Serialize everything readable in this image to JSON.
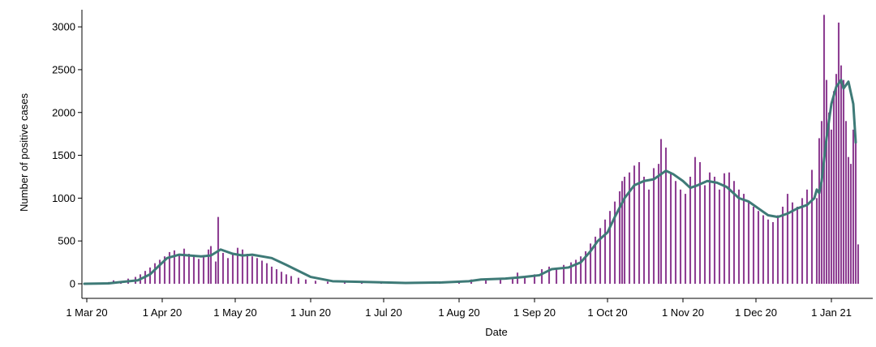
{
  "chart_data": {
    "type": "bar",
    "title": "",
    "xlabel": "Date",
    "ylabel": "Number of positive cases",
    "ylim": [
      0,
      3200
    ],
    "xlim": [
      "2020-02-28",
      "2021-01-18"
    ],
    "y_ticks": [
      0,
      500,
      1000,
      1500,
      2000,
      2500,
      3000
    ],
    "x_ticks": [
      {
        "date": "2020-03-01",
        "label": "1 Mar 20"
      },
      {
        "date": "2020-04-01",
        "label": "1 Apr 20"
      },
      {
        "date": "2020-05-01",
        "label": "1 May 20"
      },
      {
        "date": "2020-06-01",
        "label": "1 Jun 20"
      },
      {
        "date": "2020-07-01",
        "label": "1 Jul 20"
      },
      {
        "date": "2020-08-01",
        "label": "1 Aug 20"
      },
      {
        "date": "2020-09-01",
        "label": "1 Sep 20"
      },
      {
        "date": "2020-10-01",
        "label": "1 Oct 20"
      },
      {
        "date": "2020-11-01",
        "label": "1 Nov 20"
      },
      {
        "date": "2020-12-01",
        "label": "1 Dec 20"
      },
      {
        "date": "2021-01-01",
        "label": "1 Jan 21"
      }
    ],
    "grid": false,
    "legend": "none",
    "colors": {
      "bars": "#8e3f92",
      "line": "#3e7a77",
      "axis": "#000000"
    },
    "series": [
      {
        "type": "bar",
        "points": [
          [
            "2020-02-29",
            2
          ],
          [
            "2020-03-05",
            8
          ],
          [
            "2020-03-10",
            20
          ],
          [
            "2020-03-12",
            40
          ],
          [
            "2020-03-15",
            30
          ],
          [
            "2020-03-18",
            60
          ],
          [
            "2020-03-21",
            80
          ],
          [
            "2020-03-23",
            110
          ],
          [
            "2020-03-25",
            150
          ],
          [
            "2020-03-27",
            190
          ],
          [
            "2020-03-29",
            240
          ],
          [
            "2020-03-31",
            280
          ],
          [
            "2020-04-02",
            320
          ],
          [
            "2020-04-04",
            370
          ],
          [
            "2020-04-06",
            390
          ],
          [
            "2020-04-08",
            330
          ],
          [
            "2020-04-10",
            410
          ],
          [
            "2020-04-12",
            350
          ],
          [
            "2020-04-14",
            320
          ],
          [
            "2020-04-16",
            290
          ],
          [
            "2020-04-18",
            330
          ],
          [
            "2020-04-20",
            400
          ],
          [
            "2020-04-21",
            440
          ],
          [
            "2020-04-23",
            260
          ],
          [
            "2020-04-24",
            780
          ],
          [
            "2020-04-26",
            360
          ],
          [
            "2020-04-28",
            300
          ],
          [
            "2020-04-30",
            350
          ],
          [
            "2020-05-02",
            420
          ],
          [
            "2020-05-04",
            400
          ],
          [
            "2020-05-06",
            350
          ],
          [
            "2020-05-08",
            320
          ],
          [
            "2020-05-10",
            300
          ],
          [
            "2020-05-12",
            270
          ],
          [
            "2020-05-14",
            240
          ],
          [
            "2020-05-16",
            200
          ],
          [
            "2020-05-18",
            170
          ],
          [
            "2020-05-20",
            140
          ],
          [
            "2020-05-22",
            110
          ],
          [
            "2020-05-24",
            90
          ],
          [
            "2020-05-27",
            70
          ],
          [
            "2020-05-30",
            50
          ],
          [
            "2020-06-03",
            35
          ],
          [
            "2020-06-08",
            25
          ],
          [
            "2020-06-15",
            20
          ],
          [
            "2020-06-22",
            15
          ],
          [
            "2020-06-30",
            10
          ],
          [
            "2020-07-08",
            10
          ],
          [
            "2020-07-16",
            12
          ],
          [
            "2020-07-24",
            15
          ],
          [
            "2020-08-01",
            25
          ],
          [
            "2020-08-06",
            50
          ],
          [
            "2020-08-12",
            60
          ],
          [
            "2020-08-18",
            55
          ],
          [
            "2020-08-23",
            80
          ],
          [
            "2020-08-25",
            130
          ],
          [
            "2020-08-28",
            90
          ],
          [
            "2020-09-01",
            110
          ],
          [
            "2020-09-04",
            170
          ],
          [
            "2020-09-07",
            200
          ],
          [
            "2020-09-10",
            180
          ],
          [
            "2020-09-13",
            220
          ],
          [
            "2020-09-16",
            250
          ],
          [
            "2020-09-18",
            280
          ],
          [
            "2020-09-20",
            320
          ],
          [
            "2020-09-22",
            380
          ],
          [
            "2020-09-24",
            470
          ],
          [
            "2020-09-26",
            550
          ],
          [
            "2020-09-28",
            650
          ],
          [
            "2020-09-30",
            750
          ],
          [
            "2020-10-02",
            850
          ],
          [
            "2020-10-04",
            960
          ],
          [
            "2020-10-06",
            1080
          ],
          [
            "2020-10-07",
            1200
          ],
          [
            "2020-10-08",
            1250
          ],
          [
            "2020-10-10",
            1300
          ],
          [
            "2020-10-12",
            1380
          ],
          [
            "2020-10-14",
            1420
          ],
          [
            "2020-10-16",
            1250
          ],
          [
            "2020-10-18",
            1100
          ],
          [
            "2020-10-20",
            1350
          ],
          [
            "2020-10-22",
            1400
          ],
          [
            "2020-10-23",
            1690
          ],
          [
            "2020-10-25",
            1590
          ],
          [
            "2020-10-27",
            1300
          ],
          [
            "2020-10-29",
            1200
          ],
          [
            "2020-10-31",
            1100
          ],
          [
            "2020-11-02",
            1050
          ],
          [
            "2020-11-04",
            1250
          ],
          [
            "2020-11-06",
            1480
          ],
          [
            "2020-11-08",
            1420
          ],
          [
            "2020-11-10",
            1150
          ],
          [
            "2020-11-12",
            1300
          ],
          [
            "2020-11-14",
            1250
          ],
          [
            "2020-11-16",
            1100
          ],
          [
            "2020-11-18",
            1290
          ],
          [
            "2020-11-20",
            1300
          ],
          [
            "2020-11-22",
            1200
          ],
          [
            "2020-11-24",
            1100
          ],
          [
            "2020-11-26",
            1050
          ],
          [
            "2020-11-28",
            950
          ],
          [
            "2020-11-30",
            900
          ],
          [
            "2020-12-02",
            850
          ],
          [
            "2020-12-04",
            800
          ],
          [
            "2020-12-06",
            750
          ],
          [
            "2020-12-08",
            720
          ],
          [
            "2020-12-10",
            800
          ],
          [
            "2020-12-12",
            900
          ],
          [
            "2020-12-14",
            1050
          ],
          [
            "2020-12-16",
            950
          ],
          [
            "2020-12-18",
            900
          ],
          [
            "2020-12-20",
            1000
          ],
          [
            "2020-12-22",
            1100
          ],
          [
            "2020-12-24",
            1330
          ],
          [
            "2020-12-26",
            1000
          ],
          [
            "2020-12-27",
            1700
          ],
          [
            "2020-12-28",
            1900
          ],
          [
            "2020-12-29",
            3140
          ],
          [
            "2020-12-30",
            2380
          ],
          [
            "2020-12-31",
            2000
          ],
          [
            "2021-01-01",
            1800
          ],
          [
            "2021-01-02",
            2250
          ],
          [
            "2021-01-03",
            2450
          ],
          [
            "2021-01-04",
            3050
          ],
          [
            "2021-01-05",
            2550
          ],
          [
            "2021-01-06",
            2380
          ],
          [
            "2021-01-07",
            1900
          ],
          [
            "2021-01-08",
            1480
          ],
          [
            "2021-01-09",
            1400
          ],
          [
            "2021-01-10",
            1800
          ],
          [
            "2021-01-11",
            1650
          ],
          [
            "2021-01-12",
            460
          ]
        ]
      },
      {
        "type": "line",
        "points": [
          [
            "2020-02-29",
            0
          ],
          [
            "2020-03-10",
            5
          ],
          [
            "2020-03-15",
            20
          ],
          [
            "2020-03-22",
            40
          ],
          [
            "2020-03-27",
            110
          ],
          [
            "2020-04-03",
            300
          ],
          [
            "2020-04-08",
            340
          ],
          [
            "2020-04-17",
            320
          ],
          [
            "2020-04-21",
            330
          ],
          [
            "2020-04-25",
            400
          ],
          [
            "2020-04-30",
            350
          ],
          [
            "2020-05-04",
            330
          ],
          [
            "2020-05-08",
            340
          ],
          [
            "2020-05-16",
            300
          ],
          [
            "2020-05-22",
            220
          ],
          [
            "2020-06-01",
            80
          ],
          [
            "2020-06-10",
            30
          ],
          [
            "2020-06-25",
            20
          ],
          [
            "2020-07-10",
            10
          ],
          [
            "2020-07-25",
            15
          ],
          [
            "2020-08-05",
            30
          ],
          [
            "2020-08-10",
            50
          ],
          [
            "2020-08-20",
            60
          ],
          [
            "2020-08-28",
            80
          ],
          [
            "2020-09-03",
            100
          ],
          [
            "2020-09-08",
            170
          ],
          [
            "2020-09-15",
            190
          ],
          [
            "2020-09-20",
            250
          ],
          [
            "2020-09-24",
            380
          ],
          [
            "2020-09-27",
            500
          ],
          [
            "2020-10-01",
            600
          ],
          [
            "2020-10-04",
            780
          ],
          [
            "2020-10-08",
            1000
          ],
          [
            "2020-10-12",
            1150
          ],
          [
            "2020-10-16",
            1200
          ],
          [
            "2020-10-20",
            1220
          ],
          [
            "2020-10-25",
            1320
          ],
          [
            "2020-10-28",
            1280
          ],
          [
            "2020-11-01",
            1200
          ],
          [
            "2020-11-04",
            1120
          ],
          [
            "2020-11-07",
            1150
          ],
          [
            "2020-11-11",
            1200
          ],
          [
            "2020-11-15",
            1180
          ],
          [
            "2020-11-19",
            1130
          ],
          [
            "2020-11-24",
            1000
          ],
          [
            "2020-11-28",
            960
          ],
          [
            "2020-12-02",
            880
          ],
          [
            "2020-12-06",
            800
          ],
          [
            "2020-12-10",
            780
          ],
          [
            "2020-12-14",
            820
          ],
          [
            "2020-12-18",
            880
          ],
          [
            "2020-12-22",
            920
          ],
          [
            "2020-12-25",
            1000
          ],
          [
            "2020-12-26",
            1100
          ],
          [
            "2020-12-27",
            1060
          ],
          [
            "2020-12-28",
            1200
          ],
          [
            "2020-12-30",
            1700
          ],
          [
            "2021-01-01",
            2100
          ],
          [
            "2021-01-03",
            2300
          ],
          [
            "2021-01-05",
            2380
          ],
          [
            "2021-01-06",
            2280
          ],
          [
            "2021-01-08",
            2360
          ],
          [
            "2021-01-10",
            2100
          ],
          [
            "2021-01-11",
            1650
          ]
        ]
      }
    ]
  }
}
